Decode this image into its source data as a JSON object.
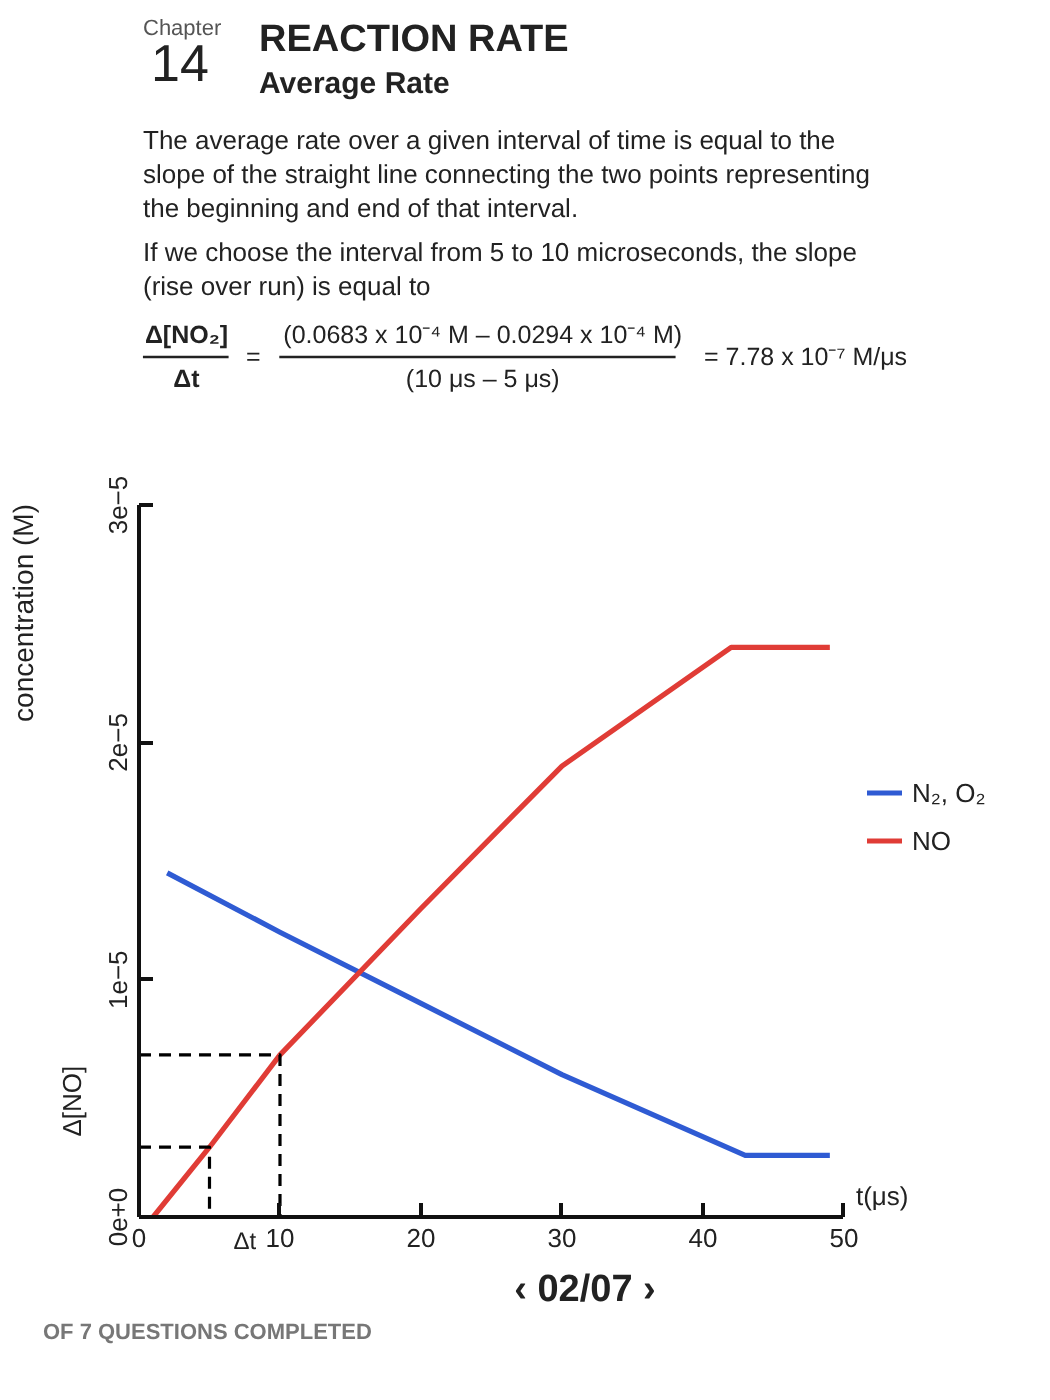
{
  "chart_data": {
    "type": "line",
    "title": "REACTION RATE",
    "subtitle": "Average Rate",
    "xlabel": "t(μs)",
    "ylabel": "concentration (M)",
    "series": [
      {
        "name": "N₂, O₂",
        "color": "#2f5bd3",
        "x": [
          2,
          10,
          20,
          30,
          43,
          49
        ],
        "values": [
          1.45e-05,
          1.2e-05,
          9e-06,
          6e-06,
          2.6e-06,
          2.6e-06
        ]
      },
      {
        "name": "NO",
        "color": "#e03c36",
        "x": [
          1,
          5,
          10,
          20,
          30,
          42,
          49
        ],
        "values": [
          0,
          2.94e-06,
          6.83e-06,
          1.3e-05,
          1.9e-05,
          2.4e-05,
          2.4e-05
        ]
      },
      {
        "color": "#000000",
        "line_style": "dashed",
        "x": [
          0,
          5,
          5
        ],
        "values": [
          2.94e-06,
          2.94e-06,
          0
        ]
      },
      {
        "color": "#000000",
        "line_style": "dashed",
        "x": [
          0,
          10,
          10
        ],
        "values": [
          6.83e-06,
          6.83e-06,
          0
        ]
      }
    ],
    "xlim": [
      0,
      50
    ],
    "xticks": [
      0,
      10,
      20,
      30,
      40,
      50
    ],
    "ylim": [
      0,
      3e-05
    ],
    "yticks": [
      {
        "value": 0,
        "label": "0e+0"
      },
      {
        "value": 1e-05,
        "label": "1e−5"
      },
      {
        "value": 2e-05,
        "label": "2e−5"
      },
      {
        "value": 3e-05,
        "label": "3e−5"
      }
    ],
    "legend": "right",
    "grid": false,
    "annotations": [
      "Chapter",
      "14",
      "The average rate over a given interval of time is equal to the slope of the straight line connecting the two points representing the beginning and end of that interval.",
      "If we choose the interval from 5 to 10 microseconds, the slope (rise over run) is equal to",
      "Δ[NO₂]",
      "Δt",
      "=",
      "(0.0683 x 10⁻⁴ M – 0.0294 x 10⁻⁴ M)",
      "(10 μs – 5 μs)",
      "= 7.78 x 10⁻⁷ M/μs",
      "OF 7 QUESTIONS COMPLETED",
      "‹ 02/07 ›",
      "Δ[NO]",
      "Δt"
    ]
  }
}
